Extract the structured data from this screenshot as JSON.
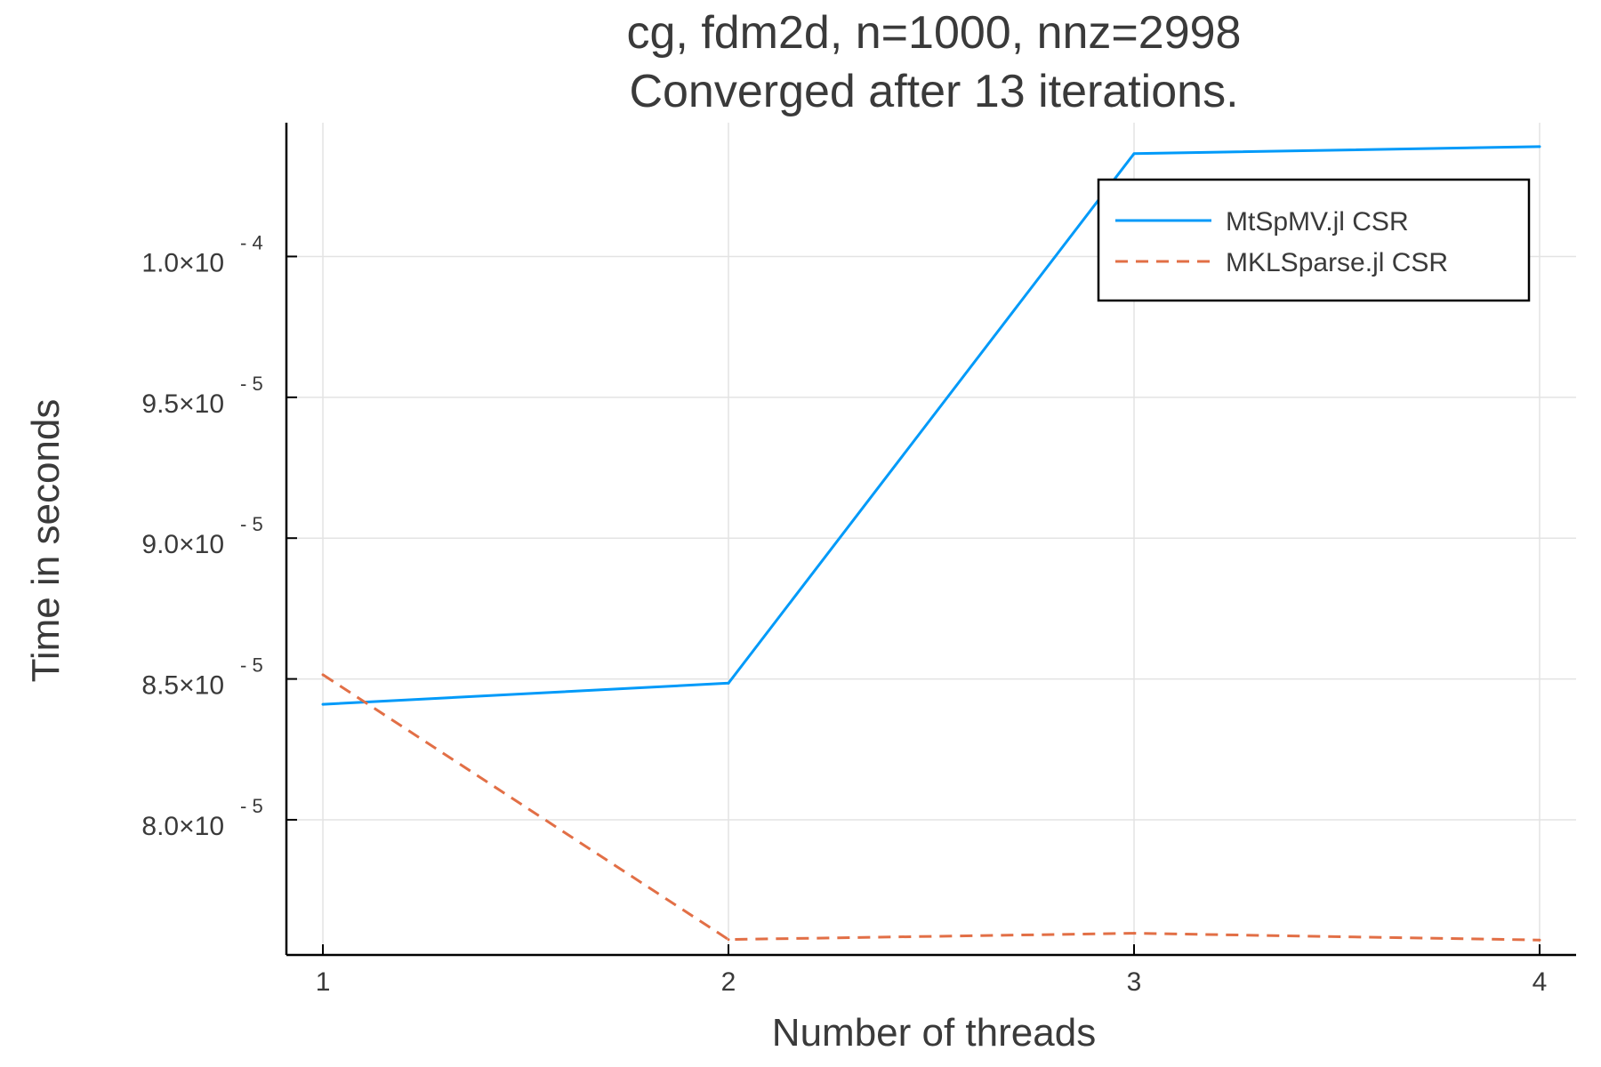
{
  "chart_data": {
    "type": "line",
    "title": [
      "cg, fdm2d, n=1000, nnz=2998",
      "Converged after 13 iterations."
    ],
    "xlabel": "Number of threads",
    "ylabel": "Time in seconds",
    "x": [
      1,
      2,
      3,
      4
    ],
    "xlim": [
      0.91,
      4.09
    ],
    "ylim": [
      7.52e-05,
      0.00010475
    ],
    "x_ticks": [
      {
        "value": 1,
        "label": "1"
      },
      {
        "value": 2,
        "label": "2"
      },
      {
        "value": 3,
        "label": "3"
      },
      {
        "value": 4,
        "label": "4"
      }
    ],
    "y_ticks": [
      {
        "value": 8e-05,
        "mantissa": "8.0×10",
        "exponent": "- 5"
      },
      {
        "value": 8.5e-05,
        "mantissa": "8.5×10",
        "exponent": "- 5"
      },
      {
        "value": 9e-05,
        "mantissa": "9.0×10",
        "exponent": "- 5"
      },
      {
        "value": 9.5e-05,
        "mantissa": "9.5×10",
        "exponent": "- 5"
      },
      {
        "value": 0.0001,
        "mantissa": "1.0×10",
        "exponent": "- 4"
      }
    ],
    "grid": true,
    "legend_position": "top-right",
    "series": [
      {
        "name": "MtSpMV.jl CSR",
        "values": [
          8.41e-05,
          8.485e-05,
          0.00010365,
          0.0001039
        ],
        "color": "#009af9",
        "style": "solid"
      },
      {
        "name": "MKLSparse.jl CSR",
        "values": [
          8.515e-05,
          7.575e-05,
          7.597e-05,
          7.573e-05
        ],
        "color": "#e26f46",
        "style": "dashed"
      }
    ]
  }
}
